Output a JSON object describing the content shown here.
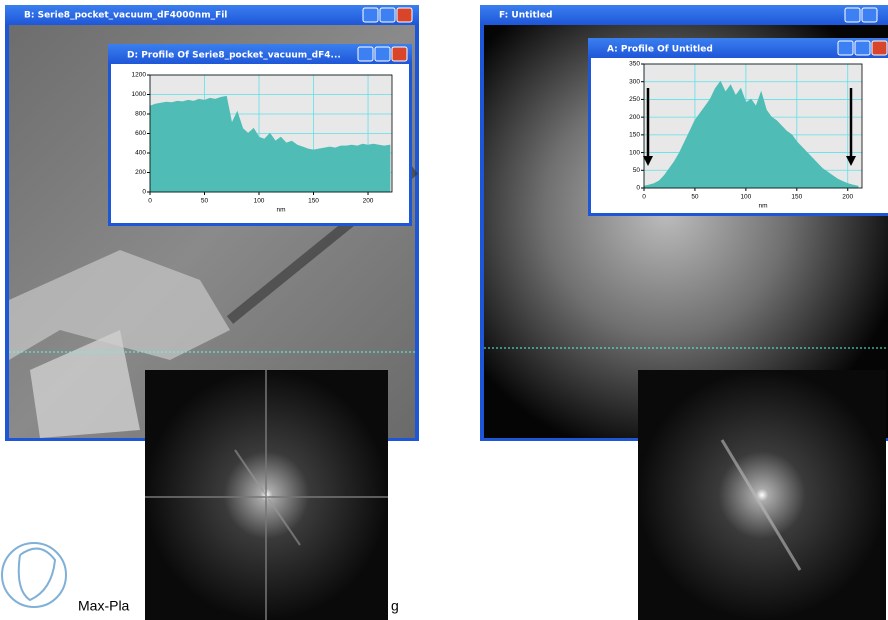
{
  "windows": {
    "left_image": "B: Serie8_pocket_vacuum_dF4000nm_Fil",
    "left_profile": "D: Profile Of Serie8_pocket_vacuum_dF4...",
    "right_image": "F: Untitled",
    "right_profile": "A: Profile Of Untitled"
  },
  "footer": {
    "left_text": "Max-Pla",
    "right_text": "g"
  },
  "chart_data": [
    {
      "type": "area",
      "xlabel": "nm",
      "color": "#4fbdb5",
      "xlim": [
        0,
        222
      ],
      "ylim": [
        0,
        1200
      ],
      "xticks": [
        0,
        50,
        100,
        150,
        200
      ],
      "yticks": [
        0,
        200,
        400,
        600,
        800,
        1000,
        1200
      ],
      "grid": true,
      "x": [
        0,
        5,
        10,
        15,
        20,
        25,
        30,
        35,
        40,
        45,
        50,
        55,
        60,
        65,
        70,
        75,
        80,
        85,
        90,
        95,
        100,
        105,
        110,
        115,
        120,
        125,
        130,
        135,
        140,
        145,
        150,
        155,
        160,
        165,
        170,
        175,
        180,
        185,
        190,
        195,
        200,
        205,
        210,
        215,
        220
      ],
      "values": [
        880,
        900,
        910,
        920,
        915,
        930,
        925,
        940,
        930,
        950,
        940,
        960,
        950,
        970,
        980,
        700,
        820,
        650,
        600,
        650,
        560,
        540,
        600,
        520,
        560,
        500,
        520,
        480,
        460,
        440,
        430,
        440,
        450,
        460,
        450,
        470,
        470,
        480,
        470,
        490,
        480,
        490,
        480,
        470,
        480
      ]
    },
    {
      "type": "area",
      "xlabel": "nm",
      "color": "#4fbdb5",
      "xlim": [
        0,
        214
      ],
      "ylim": [
        0,
        350
      ],
      "xticks": [
        0,
        50,
        100,
        150,
        200
      ],
      "yticks": [
        0,
        50,
        100,
        150,
        200,
        250,
        300,
        350
      ],
      "grid": true,
      "x": [
        0,
        5,
        10,
        15,
        20,
        25,
        30,
        35,
        40,
        45,
        50,
        55,
        60,
        65,
        70,
        75,
        80,
        85,
        90,
        95,
        100,
        105,
        110,
        115,
        120,
        125,
        130,
        135,
        140,
        145,
        150,
        155,
        160,
        165,
        170,
        175,
        180,
        185,
        190,
        195,
        200,
        205,
        210
      ],
      "values": [
        5,
        8,
        12,
        20,
        35,
        55,
        75,
        100,
        130,
        160,
        190,
        210,
        230,
        250,
        280,
        300,
        270,
        290,
        260,
        280,
        240,
        250,
        230,
        270,
        220,
        200,
        190,
        175,
        160,
        150,
        130,
        115,
        100,
        85,
        70,
        55,
        45,
        35,
        25,
        18,
        12,
        8,
        5
      ]
    }
  ]
}
